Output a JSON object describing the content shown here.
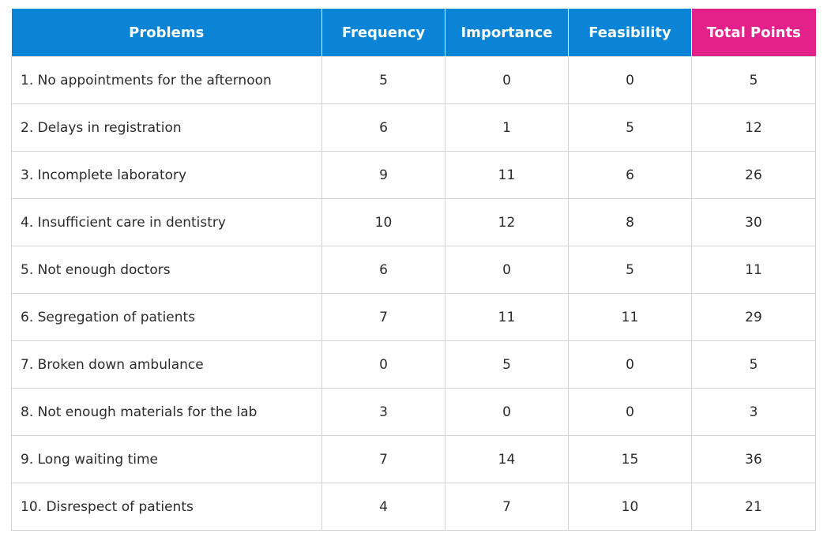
{
  "table": {
    "headers": {
      "problem": "Problems",
      "frequency": "Frequency",
      "importance": "Importance",
      "feasibility": "Feasibility",
      "total": "Total Points"
    },
    "rows": [
      {
        "problem": "1. No appointments for the afternoon",
        "frequency": "5",
        "importance": "0",
        "feasibility": "0",
        "total": "5"
      },
      {
        "problem": "2. Delays in registration",
        "frequency": "6",
        "importance": "1",
        "feasibility": "5",
        "total": "12"
      },
      {
        "problem": "3. Incomplete laboratory",
        "frequency": "9",
        "importance": "11",
        "feasibility": "6",
        "total": "26"
      },
      {
        "problem": "4. Insufficient care in dentistry",
        "frequency": "10",
        "importance": "12",
        "feasibility": "8",
        "total": "30"
      },
      {
        "problem": "5. Not enough doctors",
        "frequency": "6",
        "importance": "0",
        "feasibility": "5",
        "total": "11"
      },
      {
        "problem": "6. Segregation of patients",
        "frequency": "7",
        "importance": "11",
        "feasibility": "11",
        "total": "29"
      },
      {
        "problem": "7. Broken down ambulance",
        "frequency": "0",
        "importance": "5",
        "feasibility": "0",
        "total": "5"
      },
      {
        "problem": "8. Not enough materials for the lab",
        "frequency": "3",
        "importance": "0",
        "feasibility": "0",
        "total": "3"
      },
      {
        "problem": "9. Long waiting time",
        "frequency": "7",
        "importance": "14",
        "feasibility": "15",
        "total": "36"
      },
      {
        "problem": "10. Disrespect of patients",
        "frequency": "4",
        "importance": "7",
        "feasibility": "10",
        "total": "21"
      }
    ]
  },
  "colors": {
    "header_blue": "#0a84d6",
    "header_total_pink": "#e4218b",
    "grid_line": "#d4d4d4",
    "text": "#2b2b2b"
  }
}
